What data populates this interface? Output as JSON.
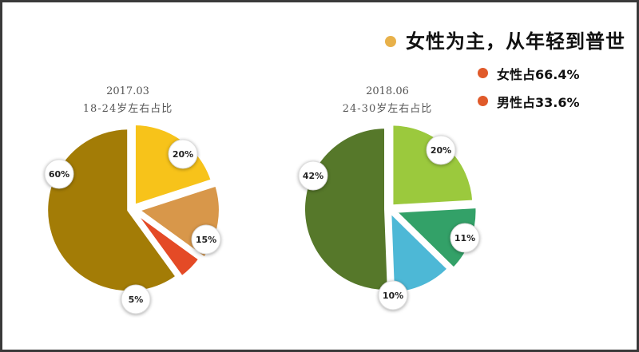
{
  "headline": {
    "text": "女性为主，从年轻到普世",
    "bullet_color": "#e8b14a"
  },
  "legend": [
    {
      "label": "女性占66.4%",
      "color": "#e05a2a"
    },
    {
      "label": "男性占33.6%",
      "color": "#e05a2a"
    }
  ],
  "chart_data": [
    {
      "type": "pie",
      "title": "2017.03",
      "subtitle": "18-24岁左右占比",
      "slices": [
        {
          "label": "20%",
          "value": 20,
          "color": "#f7c31a"
        },
        {
          "label": "15%",
          "value": 15,
          "color": "#d8974a"
        },
        {
          "label": "5%",
          "value": 5,
          "color": "#e44a26"
        },
        {
          "label": "60%",
          "value": 60,
          "color": "#a37c06"
        }
      ]
    },
    {
      "type": "pie",
      "title": "2018.06",
      "subtitle": "24-30岁左右占比",
      "slices": [
        {
          "label": "20%",
          "value": 20,
          "color": "#9bc93d"
        },
        {
          "label": "11%",
          "value": 11,
          "color": "#33a168"
        },
        {
          "label": "10%",
          "value": 10,
          "color": "#4db8d6"
        },
        {
          "label": "42%",
          "value": 42,
          "color": "#56782a"
        }
      ]
    }
  ]
}
